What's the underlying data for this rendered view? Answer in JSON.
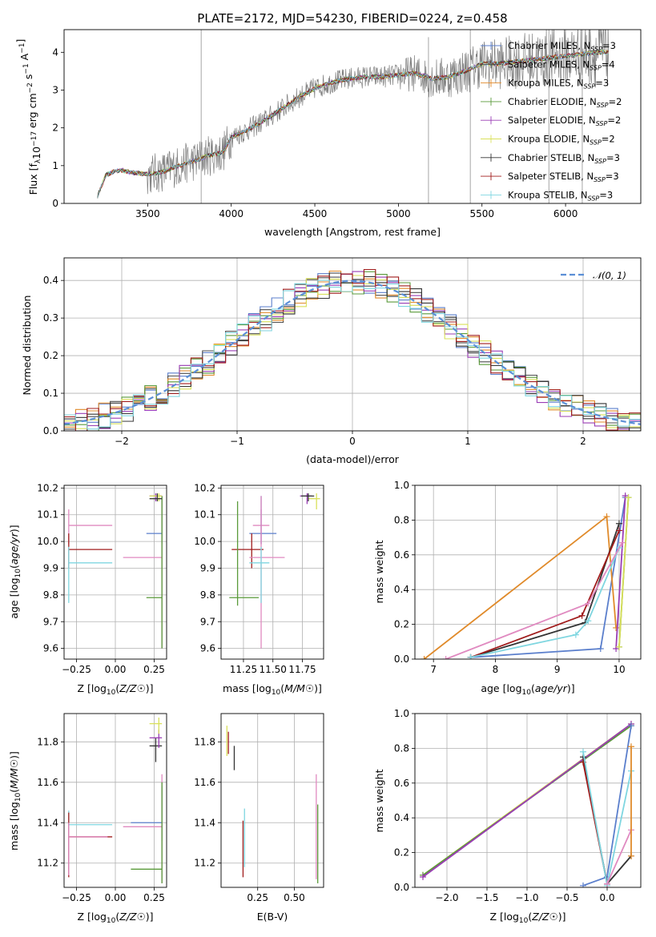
{
  "colors": {
    "series": [
      "#5b7fcc",
      "#4d4d4d",
      "#e08a2a",
      "#5a9a3a",
      "#9a3db5",
      "#d9e05a",
      "#333333",
      "#a01c1c",
      "#7fd6e0"
    ],
    "mw": [
      "#5b7fcc",
      "#e08a2a",
      "#5a9a3a",
      "#9a3db5",
      "#d9e05a",
      "#333333",
      "#a01c1c",
      "#7fd6e0",
      "#e08ac0"
    ],
    "spectrum": "#808080",
    "gauss": "#5b8fd6",
    "grid": "#b0b0b0"
  },
  "chart_data": [
    {
      "id": "spectrum",
      "type": "line",
      "title": "PLATE=2172, MJD=54230, FIBERID=0224, z=0.458",
      "xlabel": "wavelength [Angstrom, rest frame]",
      "ylabel": "Flux [f_λ10^-17 erg cm^-2 s^-1 A^-1]",
      "xlim": [
        3000,
        6450
      ],
      "ylim": [
        0,
        4.6
      ],
      "xticks": [
        "3500",
        "4000",
        "4500",
        "5000",
        "5500",
        "6000"
      ],
      "yticks": [
        "0",
        "1",
        "2",
        "3",
        "4"
      ],
      "grid": false,
      "legend_position": "top-right",
      "series": [
        {
          "name": "Chabrier MILES, N_SSP=3"
        },
        {
          "name": "Salpeter MILES, N_SSP=4"
        },
        {
          "name": "Kroupa MILES, N_SSP=3"
        },
        {
          "name": "Chabrier ELODIE, N_SSP=2"
        },
        {
          "name": "Salpeter ELODIE, N_SSP=2"
        },
        {
          "name": "Kroupa ELODIE, N_SSP=2"
        },
        {
          "name": "Chabrier STELIB, N_SSP=3"
        },
        {
          "name": "Salpeter STELIB, N_SSP=3"
        },
        {
          "name": "Kroupa STELIB, N_SSP=3"
        }
      ],
      "model_curve": {
        "x": [
          3200,
          3250,
          3300,
          3350,
          3400,
          3450,
          3500,
          3550,
          3600,
          3650,
          3700,
          3750,
          3800,
          3850,
          3900,
          3950,
          4000,
          4100,
          4200,
          4300,
          4400,
          4500,
          4600,
          4700,
          4800,
          4900,
          5000,
          5100,
          5200,
          5300,
          5400,
          5500,
          5600,
          5700,
          5800,
          5900,
          6000,
          6100,
          6200
        ],
        "y": [
          0.2,
          0.75,
          0.85,
          0.88,
          0.82,
          0.8,
          0.78,
          0.8,
          0.85,
          0.95,
          1.0,
          1.1,
          1.15,
          1.25,
          1.3,
          1.35,
          1.75,
          1.95,
          2.2,
          2.5,
          2.8,
          3.05,
          3.2,
          3.3,
          3.35,
          3.35,
          3.4,
          3.45,
          3.3,
          3.35,
          3.5,
          3.7,
          3.7,
          3.75,
          3.8,
          3.85,
          3.9,
          3.95,
          4.0
        ]
      }
    },
    {
      "id": "residuals",
      "type": "line",
      "xlabel": "(data-model)/error",
      "ylabel": "Normed distribution",
      "xlim": [
        -2.5,
        2.5
      ],
      "ylim": [
        0,
        0.46
      ],
      "xticks": [
        "−2",
        "−1",
        "0",
        "1",
        "2"
      ],
      "yticks": [
        "0.0",
        "0.1",
        "0.2",
        "0.3",
        "0.4"
      ],
      "grid": true,
      "legend_position": "top-right",
      "legend": "𝒩(0, 1)",
      "bin_width": 0.1
    },
    {
      "id": "age_vs_Z",
      "type": "scatter",
      "xlabel": "Z [log10(Z/Z☉)]",
      "ylabel": "age [log10(age/yr)]",
      "xlim": [
        -0.33,
        0.33
      ],
      "ylim": [
        9.56,
        10.21
      ],
      "xticks": [
        "−0.25",
        "0.00",
        "0.25"
      ],
      "yticks": [
        "9.6",
        "9.7",
        "9.8",
        "9.9",
        "10.0",
        "10.1",
        "10.2"
      ],
      "grid": true,
      "points": [
        {
          "x": -0.3,
          "y": 10.06,
          "xlo": -0.3,
          "xhi": -0.02,
          "ylo": 9.99,
          "yhi": 10.12,
          "c": 8
        },
        {
          "x": -0.3,
          "y": 9.97,
          "xlo": -0.3,
          "xhi": -0.02,
          "ylo": 9.9,
          "yhi": 10.03,
          "c": 6
        },
        {
          "x": -0.3,
          "y": 9.92,
          "xlo": -0.3,
          "xhi": -0.02,
          "ylo": 9.77,
          "yhi": 9.98,
          "c": 7
        },
        {
          "x": 0.3,
          "y": 10.03,
          "xlo": 0.2,
          "xhi": 0.3,
          "ylo": 9.99,
          "yhi": 10.17,
          "c": 0
        },
        {
          "x": 0.3,
          "y": 9.94,
          "xlo": 0.05,
          "xhi": 0.3,
          "ylo": 9.6,
          "yhi": 10.17,
          "c": 8
        },
        {
          "x": 0.3,
          "y": 9.79,
          "xlo": 0.2,
          "xhi": 0.3,
          "ylo": 9.6,
          "yhi": 10.17,
          "c": 2
        },
        {
          "x": 0.26,
          "y": 10.17,
          "xlo": 0.22,
          "xhi": 0.3,
          "ylo": 10.15,
          "yhi": 10.18,
          "c": 3
        },
        {
          "x": 0.28,
          "y": 10.17,
          "xlo": 0.22,
          "xhi": 0.3,
          "ylo": 10.15,
          "yhi": 10.18,
          "c": 4
        },
        {
          "x": 0.27,
          "y": 10.16,
          "xlo": 0.22,
          "xhi": 0.3,
          "ylo": 10.15,
          "yhi": 10.18,
          "c": 5
        }
      ]
    },
    {
      "id": "age_vs_mass",
      "type": "scatter",
      "xlabel": "mass [log10(M/M☉)]",
      "ylabel": "",
      "xlim": [
        11.06,
        11.93
      ],
      "ylim": [
        9.56,
        10.21
      ],
      "xticks": [
        "11.25",
        "11.50",
        "11.75"
      ],
      "yticks": [
        "9.6",
        "9.7",
        "9.8",
        "9.9",
        "10.0",
        "10.1",
        "10.2"
      ],
      "grid": true,
      "points": [
        {
          "x": 11.4,
          "y": 10.06,
          "xlo": 11.33,
          "xhi": 11.47,
          "ylo": 9.99,
          "yhi": 10.12,
          "c": 8
        },
        {
          "x": 11.4,
          "y": 10.03,
          "xlo": 11.3,
          "xhi": 11.53,
          "ylo": 9.99,
          "yhi": 10.17,
          "c": 0
        },
        {
          "x": 11.32,
          "y": 9.97,
          "xlo": 11.15,
          "xhi": 11.42,
          "ylo": 9.9,
          "yhi": 10.03,
          "c": 6
        },
        {
          "x": 11.4,
          "y": 9.94,
          "xlo": 11.3,
          "xhi": 11.6,
          "ylo": 9.6,
          "yhi": 10.17,
          "c": 8
        },
        {
          "x": 11.4,
          "y": 9.92,
          "xlo": 11.3,
          "xhi": 11.47,
          "ylo": 9.77,
          "yhi": 9.98,
          "c": 7
        },
        {
          "x": 11.2,
          "y": 9.79,
          "xlo": 11.13,
          "xhi": 11.38,
          "ylo": 9.76,
          "yhi": 10.15,
          "c": 2
        },
        {
          "x": 11.79,
          "y": 10.17,
          "xlo": 11.73,
          "xhi": 11.83,
          "ylo": 10.14,
          "yhi": 10.18,
          "c": 3
        },
        {
          "x": 11.87,
          "y": 10.16,
          "xlo": 11.8,
          "xhi": 11.9,
          "ylo": 10.12,
          "yhi": 10.18,
          "c": 4
        },
        {
          "x": 11.8,
          "y": 10.17,
          "xlo": 11.74,
          "xhi": 11.85,
          "ylo": 10.15,
          "yhi": 10.18,
          "c": 5
        }
      ]
    },
    {
      "id": "mw_vs_age",
      "type": "line",
      "xlabel": "age [log10(age/yr)]",
      "ylabel": "mass weight",
      "xlim": [
        6.7,
        10.35
      ],
      "ylim": [
        0,
        1.0
      ],
      "xticks": [
        "7",
        "8",
        "9",
        "10"
      ],
      "yticks": [
        "0.0",
        "0.2",
        "0.4",
        "0.6",
        "0.8",
        "1.0"
      ],
      "grid": true,
      "series": [
        {
          "c": 0,
          "points": [
            [
              7.6,
              0.01
            ],
            [
              9.7,
              0.06
            ],
            [
              10.1,
              0.93
            ]
          ]
        },
        {
          "c": 1,
          "points": [
            [
              6.85,
              0.0
            ],
            [
              9.8,
              0.82
            ],
            [
              9.95,
              0.18
            ]
          ]
        },
        {
          "c": 2,
          "points": [
            [
              10.0,
              0.07
            ],
            [
              10.15,
              0.93
            ]
          ]
        },
        {
          "c": 3,
          "points": [
            [
              9.95,
              0.06
            ],
            [
              10.1,
              0.94
            ]
          ]
        },
        {
          "c": 4,
          "points": [
            [
              10.0,
              0.07
            ],
            [
              10.15,
              0.93
            ]
          ]
        },
        {
          "c": 5,
          "points": [
            [
              7.6,
              0.01
            ],
            [
              9.45,
              0.21
            ],
            [
              10.0,
              0.78
            ]
          ]
        },
        {
          "c": 6,
          "points": [
            [
              7.6,
              0.01
            ],
            [
              9.4,
              0.25
            ],
            [
              10.0,
              0.74
            ]
          ]
        },
        {
          "c": 7,
          "points": [
            [
              7.6,
              0.01
            ],
            [
              9.3,
              0.14
            ],
            [
              9.5,
              0.22
            ],
            [
              10.0,
              0.64
            ]
          ]
        },
        {
          "c": 8,
          "points": [
            [
              7.2,
              0.0
            ],
            [
              9.5,
              0.32
            ],
            [
              10.05,
              0.67
            ]
          ]
        }
      ]
    },
    {
      "id": "mass_vs_Z",
      "type": "scatter",
      "xlabel": "Z [log10(Z/Z☉)]",
      "ylabel": "mass [log10(M/M☉)]",
      "xlim": [
        -0.33,
        0.33
      ],
      "ylim": [
        11.08,
        11.94
      ],
      "xticks": [
        "−0.25",
        "0.00",
        "0.25"
      ],
      "yticks": [
        "11.2",
        "11.4",
        "11.6",
        "11.8"
      ],
      "grid": true,
      "points": [
        {
          "x": -0.3,
          "y": 11.39,
          "xlo": -0.3,
          "xhi": -0.02,
          "ylo": 11.17,
          "yhi": 11.46,
          "c": 7
        },
        {
          "x": -0.3,
          "y": 11.33,
          "xlo": -0.3,
          "xhi": -0.02,
          "ylo": 11.13,
          "yhi": 11.45,
          "c": 6
        },
        {
          "x": -0.3,
          "y": 11.33,
          "xlo": -0.3,
          "xhi": -0.05,
          "ylo": 11.14,
          "yhi": 11.4,
          "c": 8
        },
        {
          "x": 0.3,
          "y": 11.4,
          "xlo": 0.1,
          "xhi": 0.3,
          "ylo": 11.31,
          "yhi": 11.58,
          "c": 0
        },
        {
          "x": 0.3,
          "y": 11.38,
          "xlo": 0.05,
          "xhi": 0.3,
          "ylo": 11.1,
          "yhi": 11.64,
          "c": 8
        },
        {
          "x": 0.3,
          "y": 11.17,
          "xlo": 0.1,
          "xhi": 0.3,
          "ylo": 11.1,
          "yhi": 11.6,
          "c": 2
        },
        {
          "x": 0.26,
          "y": 11.78,
          "xlo": 0.22,
          "xhi": 0.3,
          "ylo": 11.7,
          "yhi": 11.82,
          "c": 5
        },
        {
          "x": 0.28,
          "y": 11.82,
          "xlo": 0.22,
          "xhi": 0.3,
          "ylo": 11.77,
          "yhi": 11.86,
          "c": 3
        },
        {
          "x": 0.28,
          "y": 11.89,
          "xlo": 0.22,
          "xhi": 0.3,
          "ylo": 11.84,
          "yhi": 11.92,
          "c": 4
        }
      ]
    },
    {
      "id": "mass_vs_ebv",
      "type": "scatter",
      "xlabel": "E(B-V)",
      "ylabel": "",
      "xlim": [
        0.0,
        0.7
      ],
      "ylim": [
        11.08,
        11.94
      ],
      "xticks": [
        "0.25",
        "0.50"
      ],
      "yticks": [
        "11.2",
        "11.4",
        "11.6",
        "11.8"
      ],
      "grid": true,
      "points": [
        {
          "x": 0.04,
          "y": 11.8,
          "xlo": 0.04,
          "xhi": 0.04,
          "ylo": 11.73,
          "yhi": 11.88,
          "c": 4
        },
        {
          "x": 0.05,
          "y": 11.77,
          "xlo": 0.05,
          "xhi": 0.05,
          "ylo": 11.74,
          "yhi": 11.85,
          "c": 6
        },
        {
          "x": 0.09,
          "y": 11.73,
          "xlo": 0.09,
          "xhi": 0.09,
          "ylo": 11.66,
          "yhi": 11.78,
          "c": 5
        },
        {
          "x": 0.15,
          "y": 11.27,
          "xlo": 0.15,
          "xhi": 0.15,
          "ylo": 11.13,
          "yhi": 11.41,
          "c": 6
        },
        {
          "x": 0.16,
          "y": 11.33,
          "xlo": 0.16,
          "xhi": 0.16,
          "ylo": 11.18,
          "yhi": 11.47,
          "c": 7
        },
        {
          "x": 0.65,
          "y": 11.38,
          "xlo": 0.65,
          "xhi": 0.65,
          "ylo": 11.12,
          "yhi": 11.64,
          "c": 8
        },
        {
          "x": 0.66,
          "y": 11.3,
          "xlo": 0.66,
          "xhi": 0.66,
          "ylo": 11.1,
          "yhi": 11.49,
          "c": 2
        }
      ]
    },
    {
      "id": "mw_vs_Z",
      "type": "line",
      "xlabel": "Z [log10(Z/Z☉)]",
      "ylabel": "mass weight",
      "xlim": [
        -2.4,
        0.42
      ],
      "ylim": [
        0,
        1.0
      ],
      "xticks": [
        "−2.0",
        "−1.5",
        "−1.0",
        "−0.5",
        "0.0"
      ],
      "yticks": [
        "0.0",
        "0.2",
        "0.4",
        "0.6",
        "0.8",
        "1.0"
      ],
      "grid": true,
      "series": [
        {
          "c": 4,
          "points": [
            [
              -2.3,
              0.07
            ],
            [
              0.3,
              0.94
            ]
          ]
        },
        {
          "c": 2,
          "points": [
            [
              -2.3,
              0.07
            ],
            [
              0.3,
              0.93
            ]
          ]
        },
        {
          "c": 3,
          "points": [
            [
              -2.3,
              0.06
            ],
            [
              0.3,
              0.94
            ]
          ]
        },
        {
          "c": 0,
          "points": [
            [
              -0.3,
              0.01
            ],
            [
              0.0,
              0.06
            ],
            [
              0.3,
              0.93
            ]
          ]
        },
        {
          "c": 5,
          "points": [
            [
              -0.3,
              0.75
            ],
            [
              0.0,
              0.02
            ],
            [
              0.3,
              0.18
            ]
          ]
        },
        {
          "c": 6,
          "points": [
            [
              -0.3,
              0.72
            ],
            [
              0.0,
              0.02
            ]
          ]
        },
        {
          "c": 7,
          "points": [
            [
              -0.3,
              0.78
            ],
            [
              0.0,
              0.01
            ],
            [
              0.3,
              0.67
            ]
          ]
        },
        {
          "c": 8,
          "points": [
            [
              0.0,
              0.02
            ],
            [
              0.3,
              0.33
            ]
          ]
        },
        {
          "c": 1,
          "points": [
            [
              0.3,
              0.18
            ],
            [
              0.3,
              0.81
            ]
          ]
        }
      ]
    }
  ]
}
